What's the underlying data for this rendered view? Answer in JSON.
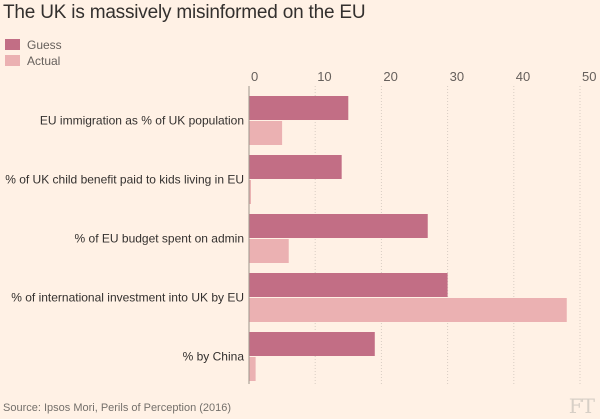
{
  "title": "The UK is massively misinformed on the EU",
  "legend": [
    {
      "label": "Guess",
      "color": "#c26e85"
    },
    {
      "label": "Actual",
      "color": "#ebb1b2"
    }
  ],
  "source": "Source: Ipsos Mori, Perils of Perception (2016)",
  "logo": "FT",
  "chart_data": {
    "type": "bar",
    "orientation": "horizontal",
    "title": "The UK is massively misinformed on the EU",
    "categories": [
      "EU immigration as % of UK population",
      "% of UK child benefit paid to kids living in EU",
      "% of EU budget spent on admin",
      "% of international investment into UK by EU",
      "% by China"
    ],
    "series": [
      {
        "name": "Guess",
        "color": "#c26e85",
        "values": [
          15,
          14,
          27,
          30,
          19
        ]
      },
      {
        "name": "Actual",
        "color": "#ebb1b2",
        "values": [
          5,
          0.3,
          6,
          48,
          1
        ]
      }
    ],
    "xlim": [
      0,
      50
    ],
    "ticks": [
      0,
      10,
      20,
      30,
      40,
      50
    ],
    "xlabel": "",
    "ylabel": "",
    "grid": true,
    "legend_position": "top-left"
  }
}
